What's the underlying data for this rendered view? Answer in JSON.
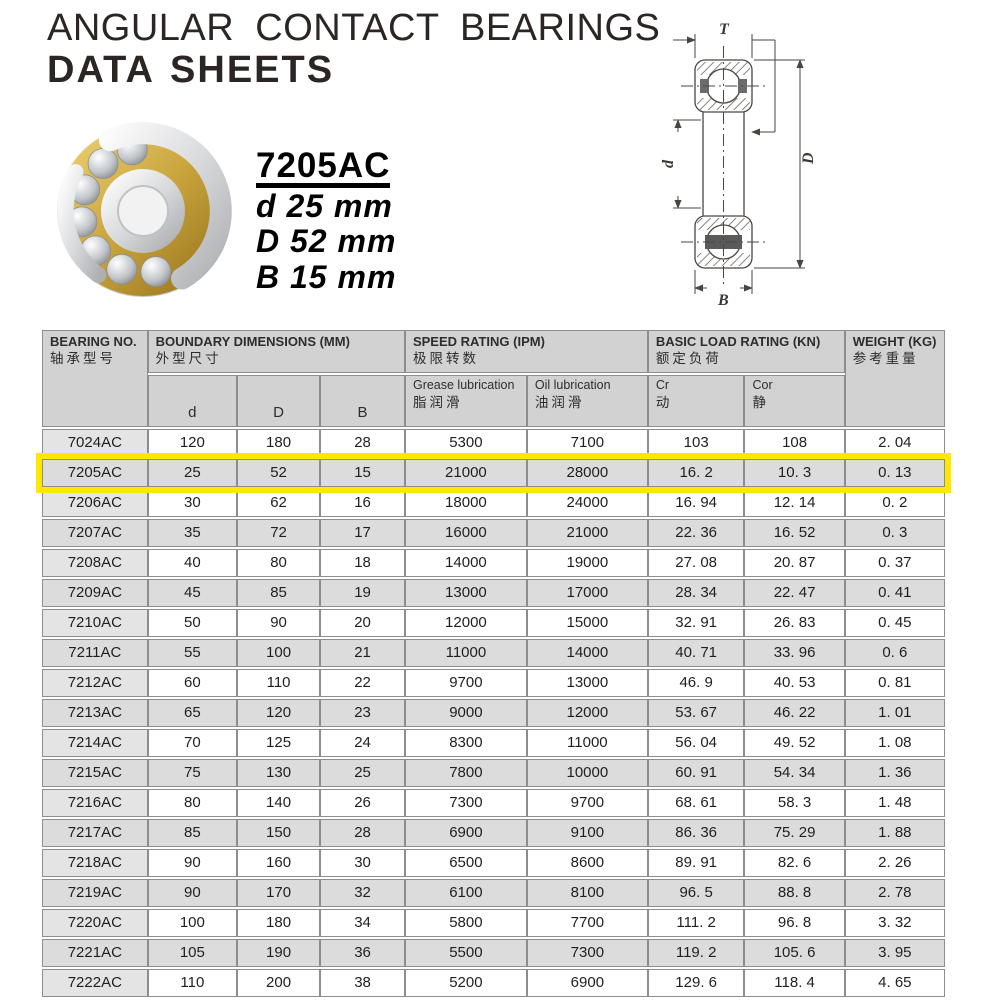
{
  "title": {
    "line1": "ANGULAR CONTACT BEARINGS",
    "line2": "DATA SHEETS"
  },
  "callout": {
    "model": "7205AC",
    "dims": [
      "d 25 mm",
      "D 52 mm",
      "B 15 mm"
    ]
  },
  "diagram_labels": {
    "top": "T",
    "left": "d",
    "right": "D",
    "bottom": "B"
  },
  "table": {
    "header": {
      "bearing_no": {
        "en": "BEARING NO.",
        "zh": "轴承型号"
      },
      "boundary": {
        "en": "BOUNDARY DIMENSIONS (MM)",
        "zh": "外型尺寸"
      },
      "speed": {
        "en": "SPEED RATING (IPM)",
        "zh": "极限转数"
      },
      "load": {
        "en": "BASIC LOAD RATING (KN)",
        "zh": "额定负荷"
      },
      "weight": {
        "en": "WEIGHT (KG)",
        "zh": "参考重量"
      },
      "sub": {
        "d": "d",
        "D": "D",
        "B": "B",
        "grease_en": "Grease lubrication",
        "grease_zh": "脂润滑",
        "oil_en": "Oil lubrication",
        "oil_zh": "油润滑",
        "cr_en": "Cr",
        "cr_zh": "动",
        "cor_en": "Cor",
        "cor_zh": "静"
      }
    },
    "highlighted_row": "7205AC",
    "rows": [
      [
        "7024AC",
        "120",
        "180",
        "28",
        "5300",
        "7100",
        "103",
        "108",
        "2. 04"
      ],
      [
        "7205AC",
        "25",
        "52",
        "15",
        "21000",
        "28000",
        "16. 2",
        "10. 3",
        "0. 13"
      ],
      [
        "7206AC",
        "30",
        "62",
        "16",
        "18000",
        "24000",
        "16. 94",
        "12. 14",
        "0. 2"
      ],
      [
        "7207AC",
        "35",
        "72",
        "17",
        "16000",
        "21000",
        "22. 36",
        "16. 52",
        "0. 3"
      ],
      [
        "7208AC",
        "40",
        "80",
        "18",
        "14000",
        "19000",
        "27. 08",
        "20. 87",
        "0. 37"
      ],
      [
        "7209AC",
        "45",
        "85",
        "19",
        "13000",
        "17000",
        "28. 34",
        "22. 47",
        "0. 41"
      ],
      [
        "7210AC",
        "50",
        "90",
        "20",
        "12000",
        "15000",
        "32. 91",
        "26. 83",
        "0. 45"
      ],
      [
        "7211AC",
        "55",
        "100",
        "21",
        "11000",
        "14000",
        "40. 71",
        "33. 96",
        "0. 6"
      ],
      [
        "7212AC",
        "60",
        "110",
        "22",
        "9700",
        "13000",
        "46. 9",
        "40. 53",
        "0. 81"
      ],
      [
        "7213AC",
        "65",
        "120",
        "23",
        "9000",
        "12000",
        "53. 67",
        "46. 22",
        "1. 01"
      ],
      [
        "7214AC",
        "70",
        "125",
        "24",
        "8300",
        "11000",
        "56. 04",
        "49. 52",
        "1. 08"
      ],
      [
        "7215AC",
        "75",
        "130",
        "25",
        "7800",
        "10000",
        "60. 91",
        "54. 34",
        "1. 36"
      ],
      [
        "7216AC",
        "80",
        "140",
        "26",
        "7300",
        "9700",
        "68. 61",
        "58. 3",
        "1. 48"
      ],
      [
        "7217AC",
        "85",
        "150",
        "28",
        "6900",
        "9100",
        "86. 36",
        "75. 29",
        "1. 88"
      ],
      [
        "7218AC",
        "90",
        "160",
        "30",
        "6500",
        "8600",
        "89. 91",
        "82. 6",
        "2. 26"
      ],
      [
        "7219AC",
        "90",
        "170",
        "32",
        "6100",
        "8100",
        "96. 5",
        "88. 8",
        "2. 78"
      ],
      [
        "7220AC",
        "100",
        "180",
        "34",
        "5800",
        "7700",
        "111. 2",
        "96. 8",
        "3. 32"
      ],
      [
        "7221AC",
        "105",
        "190",
        "36",
        "5500",
        "7300",
        "119. 2",
        "105. 6",
        "3. 95"
      ],
      [
        "7222AC",
        "110",
        "200",
        "38",
        "5200",
        "6900",
        "129. 6",
        "118. 4",
        "4. 65"
      ]
    ]
  },
  "colors": {
    "highlight": "#ffe800",
    "header_bg": "#d2d2d2",
    "row_gray": "#dcdcdc",
    "row_white": "#ffffff",
    "first_col_bg": "#e4e4e4",
    "border": "#8d8d8d",
    "gold": "#c9a43c"
  }
}
